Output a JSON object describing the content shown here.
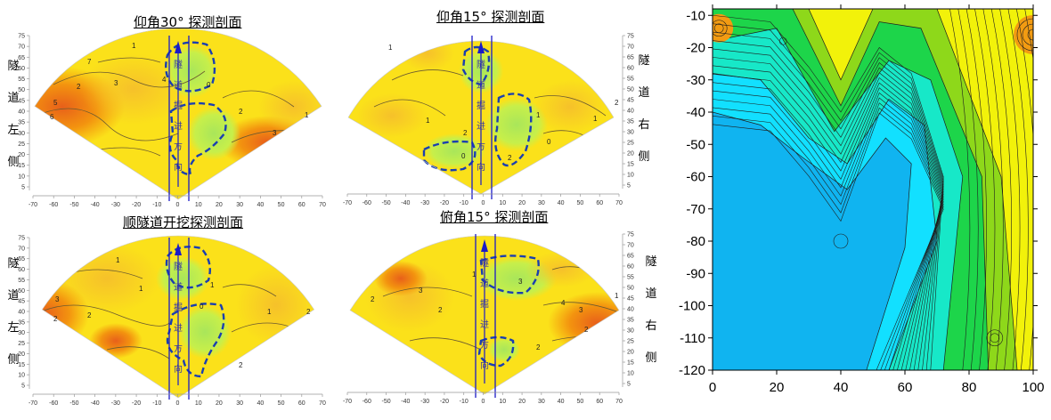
{
  "colors": {
    "cyan": "#12b7ee",
    "green": "#14d04a",
    "yellow": "#fff000",
    "orange": "#f3930f",
    "red_orange": "#e8601a",
    "light_green": "#c7ef4a",
    "blue_line": "#1a1ac8",
    "dash_blue": "#1a3fb0"
  },
  "fan_panels": [
    {
      "id": "tl",
      "title": "仰角30° 探测剖面",
      "side_text": [
        "隧",
        "道",
        "左",
        "侧"
      ],
      "side": "left",
      "tunnel_text": [
        "隧",
        "道",
        "掘",
        "进",
        "方",
        "向"
      ],
      "x_ticks": [
        "-70",
        "-60",
        "-50",
        "-40",
        "-30",
        "-20",
        "-10",
        "0",
        "10",
        "20",
        "30",
        "40",
        "50",
        "60",
        "70"
      ],
      "y_ticks": [
        "75",
        "70",
        "65",
        "60",
        "55",
        "50",
        "45",
        "40",
        "35",
        "30",
        "25",
        "20",
        "15",
        "10",
        "5"
      ],
      "contour_labels": [
        "1",
        "2",
        "3",
        "4",
        "5",
        "6",
        "7",
        "0",
        "2",
        "3",
        "1"
      ]
    },
    {
      "id": "tr",
      "title": "仰角15° 探测剖面",
      "side_text": [
        "隧",
        "道",
        "右",
        "侧"
      ],
      "side": "right",
      "tunnel_text": [
        "隧",
        "道",
        "掘",
        "进",
        "方",
        "向"
      ],
      "x_ticks": [
        "-70",
        "-60",
        "-50",
        "-40",
        "-30",
        "-20",
        "-10",
        "0",
        "10",
        "20",
        "30",
        "40",
        "50",
        "60",
        "70"
      ],
      "y_ticks": [
        "75",
        "70",
        "65",
        "60",
        "55",
        "50",
        "45",
        "40",
        "35",
        "30",
        "25",
        "20",
        "15",
        "10",
        "5"
      ],
      "contour_labels": [
        "1",
        "2",
        "0",
        "1",
        "2",
        "0",
        "1",
        "1",
        "2"
      ]
    },
    {
      "id": "bl",
      "title": "顺隧道开挖探测剖面",
      "side_text": [
        "隧",
        "道",
        "左",
        "侧"
      ],
      "side": "left",
      "tunnel_text": [
        "隧",
        "道",
        "掘",
        "进",
        "方",
        "向"
      ],
      "x_ticks": [
        "-70",
        "-60",
        "-50",
        "-40",
        "-30",
        "-20",
        "-10",
        "0",
        "10",
        "20",
        "30",
        "40",
        "50",
        "60",
        "70"
      ],
      "y_ticks": [
        "75",
        "70",
        "65",
        "60",
        "55",
        "50",
        "45",
        "40",
        "35",
        "30",
        "25",
        "20",
        "15",
        "10",
        "5"
      ],
      "contour_labels": [
        "1",
        "2",
        "3",
        "2",
        "1",
        "0",
        "1",
        "2",
        "1",
        "2"
      ]
    },
    {
      "id": "br",
      "title": "俯角15° 探测剖面",
      "side_text": [
        "隧",
        "道",
        "右",
        "侧"
      ],
      "side": "right",
      "tunnel_text": [
        "隧",
        "道",
        "掘",
        "进",
        "方",
        "向"
      ],
      "x_ticks": [
        "-70",
        "-60",
        "-50",
        "-40",
        "-30",
        "-20",
        "-10",
        "0",
        "10",
        "20",
        "30",
        "40",
        "50",
        "60",
        "70"
      ],
      "y_ticks": [
        "75",
        "70",
        "65",
        "60",
        "55",
        "50",
        "45",
        "40",
        "35",
        "30",
        "25",
        "20",
        "15",
        "10",
        "5"
      ],
      "contour_labels": [
        "2",
        "3",
        "2",
        "1",
        "3",
        "4",
        "3",
        "2",
        "1",
        "2"
      ]
    }
  ],
  "chart_data": [
    {
      "type": "heatmap",
      "title": "仰角30° 探测剖面",
      "xlabel": "",
      "ylabel": "",
      "xlim": [
        -70,
        70
      ],
      "ylim": [
        0,
        75
      ],
      "contour_levels": [
        0,
        1,
        2,
        3,
        4,
        5,
        6,
        7
      ]
    },
    {
      "type": "heatmap",
      "title": "仰角15° 探测剖面",
      "xlabel": "",
      "ylabel": "",
      "xlim": [
        -70,
        70
      ],
      "ylim": [
        0,
        75
      ],
      "contour_levels": [
        0,
        1,
        2
      ]
    },
    {
      "type": "heatmap",
      "title": "顺隧道开挖探测剖面",
      "xlabel": "",
      "ylabel": "",
      "xlim": [
        -70,
        70
      ],
      "ylim": [
        0,
        75
      ],
      "contour_levels": [
        0,
        1,
        2,
        3
      ]
    },
    {
      "type": "heatmap",
      "title": "俯角15° 探测剖面",
      "xlabel": "",
      "ylabel": "",
      "xlim": [
        -70,
        70
      ],
      "ylim": [
        0,
        75
      ],
      "contour_levels": [
        1,
        2,
        3,
        4
      ]
    },
    {
      "type": "heatmap",
      "title": "",
      "xlabel": "",
      "ylabel": "",
      "xlim": [
        0,
        100
      ],
      "ylim": [
        -120,
        -8
      ],
      "x_ticks": [
        "0",
        "20",
        "40",
        "60",
        "80",
        "100"
      ],
      "y_ticks": [
        "-10",
        "-20",
        "-30",
        "-40",
        "-50",
        "-60",
        "-70",
        "-80",
        "-90",
        "-100",
        "-110",
        "-120"
      ],
      "colormap": [
        "#10b4f0",
        "#12e0ff",
        "#1dd54a",
        "#8ed81a",
        "#f2f20a",
        "#f29b12"
      ]
    }
  ]
}
